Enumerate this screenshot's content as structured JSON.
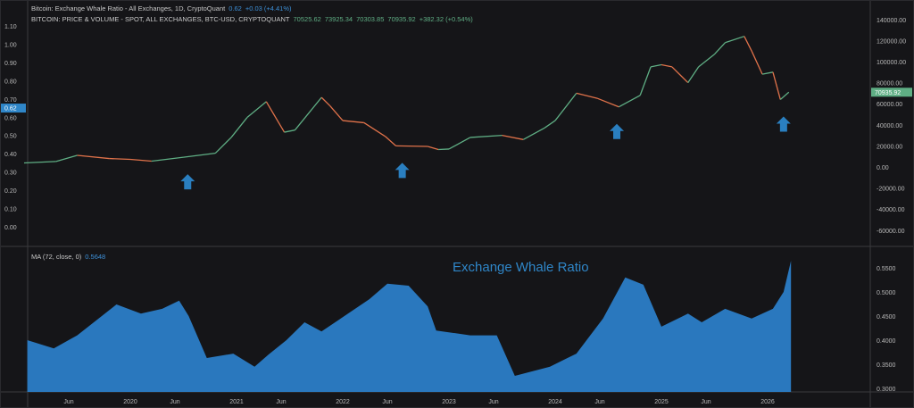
{
  "legend": {
    "line1": {
      "label": "Bitcoin: Exchange Whale Ratio - All Exchanges, 1D, CryptoQuant",
      "value": "0.62",
      "change": "+0.03 (+4.41%)"
    },
    "line2": {
      "label": "BITCOIN: PRICE & VOLUME - SPOT, ALL EXCHANGES, BTC-USD, CRYPTOQUANT",
      "open": "70525.62",
      "high": "73925.34",
      "low": "70303.85",
      "close": "70935.92",
      "change": "+382.32 (+0.54%)"
    },
    "ma": {
      "label": "MA (72, close, 0)",
      "value": "0.5648"
    }
  },
  "annotation": "Exchange Whale Ratio",
  "colors": {
    "bg": "#151518",
    "area": "#2a78be",
    "up": "#5fae84",
    "down": "#e0724a",
    "arrow": "#2a7fc0",
    "ratio_badge": "#2f86c8",
    "price_badge": "#5fae84"
  },
  "chart_data": [
    {
      "type": "line",
      "title": "Bitcoin price (USD)",
      "axis": "right",
      "yticks": [
        "140000.00",
        "120000.00",
        "100000.00",
        "80000.00",
        "60000.00",
        "40000.00",
        "20000.00",
        "0.00",
        "-20000.00",
        "-40000.00",
        "-60000.00"
      ],
      "ytick_values": [
        140000,
        120000,
        100000,
        80000,
        60000,
        40000,
        20000,
        0,
        -20000,
        -40000,
        -60000
      ],
      "current_label": "70935.92",
      "series": [
        [
          2019.0,
          3800
        ],
        [
          2019.3,
          5200
        ],
        [
          2019.5,
          11000
        ],
        [
          2019.8,
          8000
        ],
        [
          2020.0,
          7200
        ],
        [
          2020.2,
          5500
        ],
        [
          2020.5,
          9200
        ],
        [
          2020.8,
          13000
        ],
        [
          2020.95,
          28000
        ],
        [
          2021.1,
          47000
        ],
        [
          2021.28,
          62000
        ],
        [
          2021.45,
          33000
        ],
        [
          2021.55,
          35000
        ],
        [
          2021.8,
          66000
        ],
        [
          2021.88,
          58000
        ],
        [
          2022.0,
          44000
        ],
        [
          2022.2,
          42000
        ],
        [
          2022.4,
          29000
        ],
        [
          2022.5,
          20000
        ],
        [
          2022.8,
          19500
        ],
        [
          2022.9,
          16500
        ],
        [
          2023.0,
          17000
        ],
        [
          2023.2,
          28000
        ],
        [
          2023.5,
          30000
        ],
        [
          2023.7,
          26000
        ],
        [
          2023.9,
          37000
        ],
        [
          2024.0,
          44000
        ],
        [
          2024.2,
          70000
        ],
        [
          2024.4,
          65000
        ],
        [
          2024.6,
          57000
        ],
        [
          2024.8,
          68000
        ],
        [
          2024.9,
          95000
        ],
        [
          2025.0,
          97000
        ],
        [
          2025.1,
          95000
        ],
        [
          2025.25,
          80000
        ],
        [
          2025.35,
          95000
        ],
        [
          2025.5,
          107000
        ],
        [
          2025.6,
          118000
        ],
        [
          2025.78,
          124000
        ],
        [
          2025.85,
          110000
        ],
        [
          2025.95,
          88000
        ],
        [
          2026.05,
          90000
        ],
        [
          2026.12,
          64000
        ],
        [
          2026.2,
          70935
        ]
      ]
    },
    {
      "type": "line",
      "title": "Bitcoin: Exchange Whale Ratio",
      "axis": "left",
      "yticks": [
        "1.10",
        "1.00",
        "0.90",
        "0.80",
        "0.70",
        "0.60",
        "0.50",
        "0.40",
        "0.30",
        "0.20",
        "0.10",
        "0.00"
      ],
      "ytick_values": [
        1.1,
        1.0,
        0.9,
        0.8,
        0.7,
        0.6,
        0.5,
        0.4,
        0.3,
        0.2,
        0.1,
        0.0
      ],
      "current_label": "0.62"
    },
    {
      "type": "area",
      "title": "MA (72, close, 0)",
      "axis": "right",
      "yticks": [
        "0.5500",
        "0.5000",
        "0.4500",
        "0.4000",
        "0.3500",
        "0.3000"
      ],
      "ytick_values": [
        0.55,
        0.5,
        0.45,
        0.4,
        0.35,
        0.3
      ],
      "series": [
        [
          2019.03,
          0.4
        ],
        [
          2019.28,
          0.383
        ],
        [
          2019.5,
          0.41
        ],
        [
          2019.87,
          0.474
        ],
        [
          2020.1,
          0.455
        ],
        [
          2020.3,
          0.465
        ],
        [
          2020.46,
          0.482
        ],
        [
          2020.55,
          0.45
        ],
        [
          2020.72,
          0.363
        ],
        [
          2020.97,
          0.372
        ],
        [
          2021.17,
          0.345
        ],
        [
          2021.3,
          0.37
        ],
        [
          2021.47,
          0.4
        ],
        [
          2021.64,
          0.437
        ],
        [
          2021.8,
          0.418
        ],
        [
          2022.05,
          0.455
        ],
        [
          2022.25,
          0.485
        ],
        [
          2022.42,
          0.517
        ],
        [
          2022.62,
          0.513
        ],
        [
          2022.8,
          0.47
        ],
        [
          2022.88,
          0.42
        ],
        [
          2023.2,
          0.41
        ],
        [
          2023.45,
          0.41
        ],
        [
          2023.62,
          0.326
        ],
        [
          2023.95,
          0.345
        ],
        [
          2024.2,
          0.372
        ],
        [
          2024.45,
          0.445
        ],
        [
          2024.66,
          0.53
        ],
        [
          2024.83,
          0.515
        ],
        [
          2025.0,
          0.428
        ],
        [
          2025.25,
          0.455
        ],
        [
          2025.38,
          0.437
        ],
        [
          2025.6,
          0.465
        ],
        [
          2025.85,
          0.445
        ],
        [
          2026.05,
          0.465
        ],
        [
          2026.15,
          0.5
        ],
        [
          2026.22,
          0.5648
        ]
      ]
    },
    {
      "type": "axis",
      "xticks": [
        "Jun",
        "2020",
        "Jun",
        "2021",
        "Jun",
        "2022",
        "Jun",
        "2023",
        "Jun",
        "2024",
        "Jun",
        "2025",
        "Jun",
        "2026"
      ],
      "xtick_values": [
        2019.42,
        2020,
        2020.42,
        2021,
        2021.42,
        2022,
        2022.42,
        2023,
        2023.42,
        2024,
        2024.42,
        2025,
        2025.42,
        2026
      ]
    }
  ],
  "arrows": [
    2020.54,
    2022.56,
    2024.58,
    2026.15
  ]
}
